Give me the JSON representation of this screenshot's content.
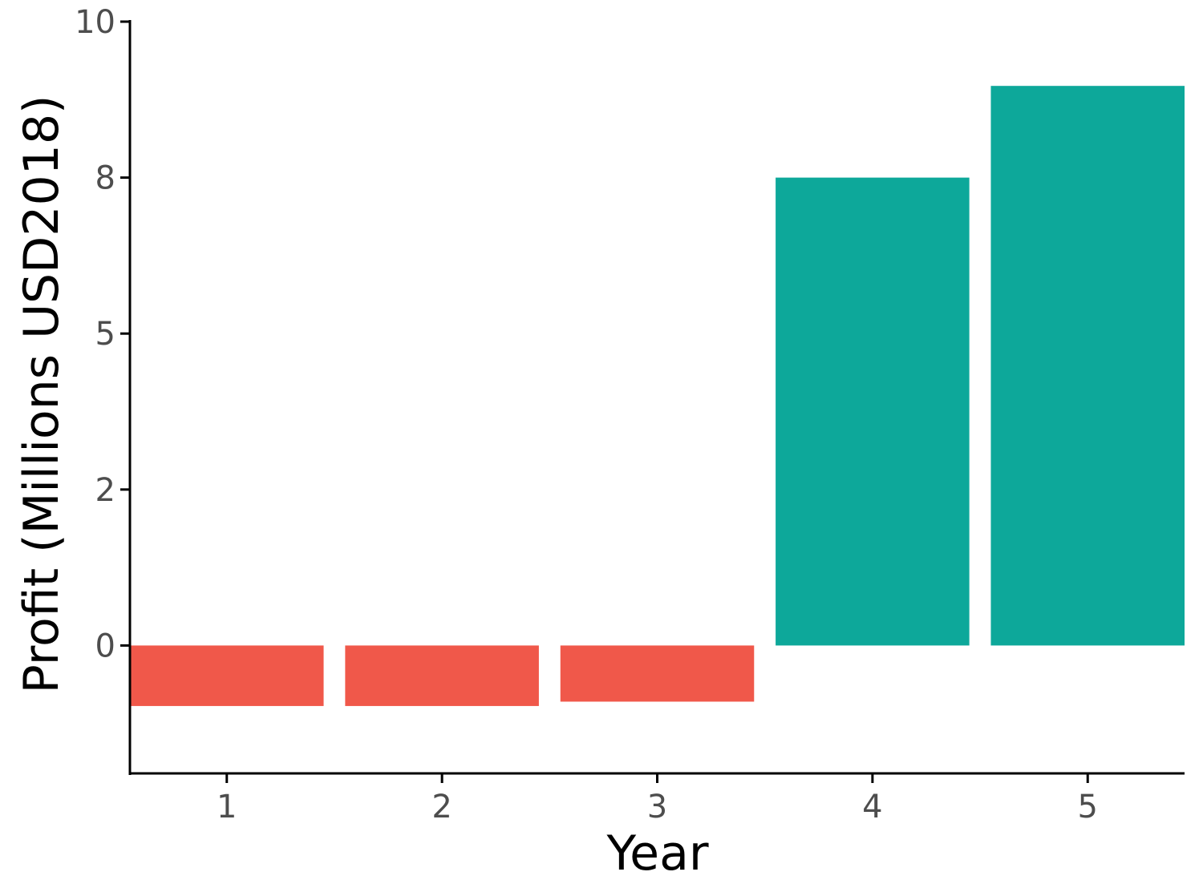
{
  "chart_data": {
    "type": "bar",
    "xlabel": "Year",
    "ylabel": "Profit (Millions USD2018)",
    "categories": [
      "1",
      "2",
      "3",
      "4",
      "5"
    ],
    "values": [
      -0.97,
      -0.97,
      -0.9,
      7.5,
      8.97
    ],
    "y_ticks": [
      0,
      2,
      5,
      8,
      10
    ],
    "y_tick_values": [
      0,
      2.5,
      5,
      7.5,
      10
    ],
    "ylim": [
      -2.05,
      10
    ],
    "grid": false,
    "legend": "none",
    "colors": {
      "negative": "#F0584A",
      "positive": "#0DA89A",
      "axis": "#000000"
    }
  }
}
